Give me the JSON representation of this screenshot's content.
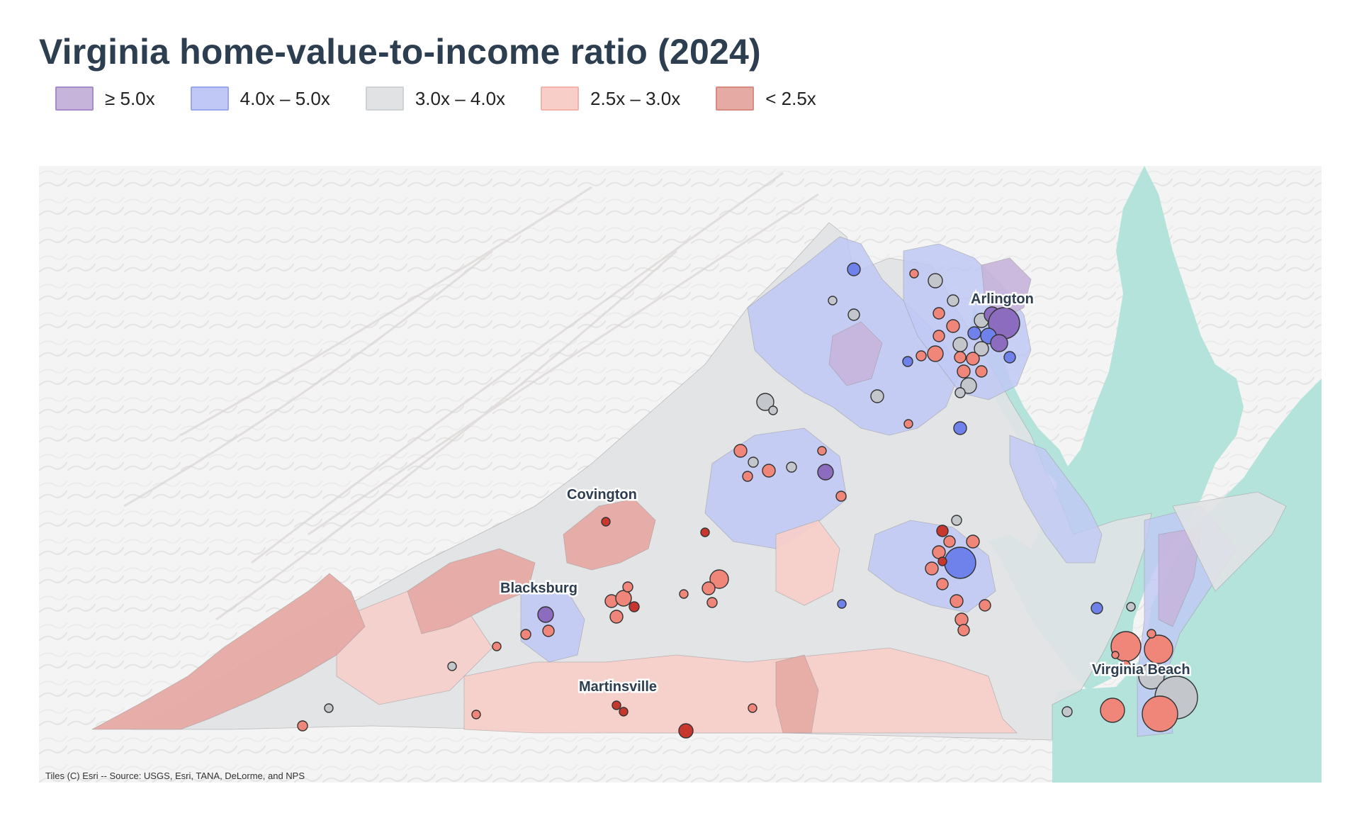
{
  "title": "Virginia home-value-to-income ratio (2024)",
  "legend": [
    {
      "label": "≥ 5.0x",
      "fill": "#c7b4da",
      "stroke": "#a58bc7"
    },
    {
      "label": "4.0x – 5.0x",
      "fill": "#c0c8f5",
      "stroke": "#9aa7ee"
    },
    {
      "label": "3.0x – 4.0x",
      "fill": "#e0e2e4",
      "stroke": "#cfd2d5"
    },
    {
      "label": "2.5x – 3.0x",
      "fill": "#f8cec9",
      "stroke": "#f2b3ab"
    },
    {
      "label": "< 2.5x",
      "fill": "#e6aaa4",
      "stroke": "#d98a81"
    }
  ],
  "colors": {
    "ge5": "#8b6cbf",
    "r4to5": "#6f82ec",
    "r3to4": "#c3c7cc",
    "r25to3": "#f0867a",
    "lt25": "#c8372d",
    "water": "#b4e3dc",
    "land": "#f3f3f3",
    "title": "#2c3e50"
  },
  "cities": {
    "arlington": "Arlington",
    "covington": "Covington",
    "blacksburg": "Blacksburg",
    "martinsville": "Martinsville",
    "virginia_beach": "Virginia Beach"
  },
  "attribution": "Tiles (C) Esri -- Source: USGS, Esri, TANA, DeLorme, and NPS"
}
